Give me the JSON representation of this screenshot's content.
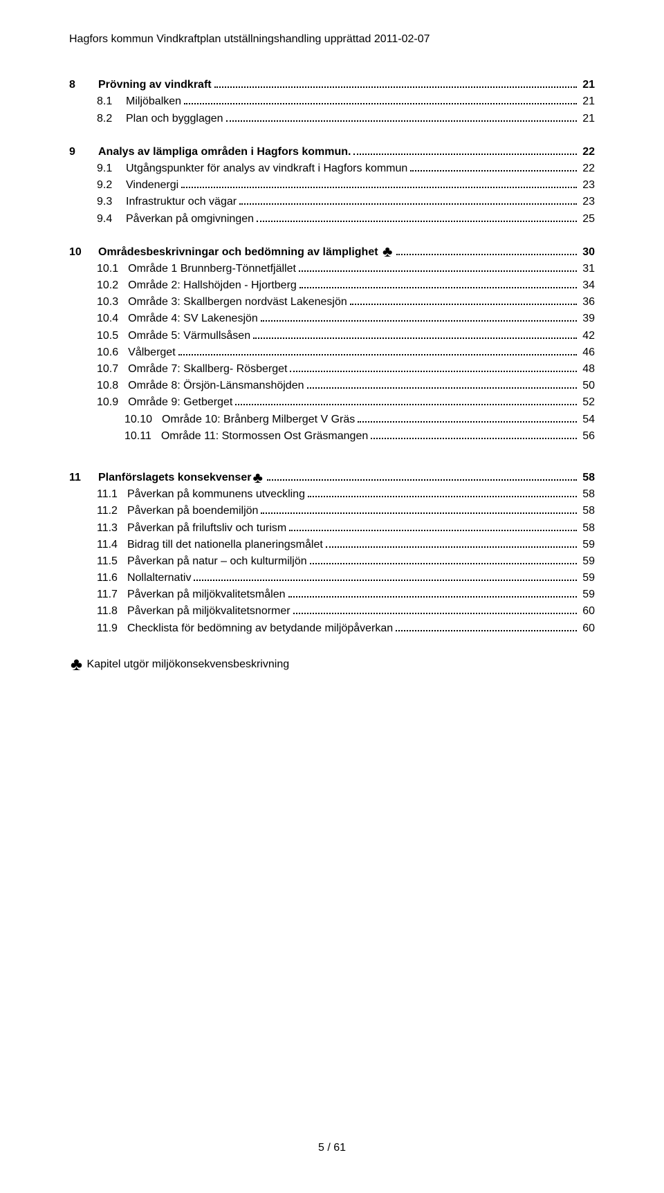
{
  "header": "Hagfors kommun Vindkraftplan utställningshandling upprättad 2011-02-07",
  "club_glyph": "♣",
  "afternote": "Kapitel utgör miljökonsekvensbeskrivning",
  "footer": "5 / 61",
  "toc": [
    {
      "num": "8",
      "label": "Prövning av vindkraft",
      "page": "21",
      "bold": true,
      "indent": 0,
      "club": false
    },
    {
      "num": "8.1",
      "label": "Miljöbalken",
      "page": "21",
      "bold": false,
      "indent": 1,
      "club": false
    },
    {
      "num": "8.2",
      "label": "Plan och bygglagen",
      "page": "21",
      "bold": false,
      "indent": 1,
      "club": false
    },
    {
      "gap": true
    },
    {
      "num": "9",
      "label": "Analys av lämpliga områden i Hagfors kommun.",
      "page": "22",
      "bold": true,
      "indent": 0,
      "club": false
    },
    {
      "num": "9.1",
      "label": "Utgångspunkter för analys av vindkraft i Hagfors kommun",
      "page": "22",
      "bold": false,
      "indent": 1,
      "club": false
    },
    {
      "num": "9.2",
      "label": "Vindenergi",
      "page": "23",
      "bold": false,
      "indent": 1,
      "club": false
    },
    {
      "num": "9.3",
      "label": "Infrastruktur och vägar",
      "page": "23",
      "bold": false,
      "indent": 1,
      "club": false
    },
    {
      "num": "9.4",
      "label": "Påverkan på omgivningen",
      "page": "25",
      "bold": false,
      "indent": 1,
      "club": false
    },
    {
      "gap": true
    },
    {
      "num": "10",
      "label": "Områdesbeskrivningar och bedömning av lämplighet ",
      "page": "30",
      "bold": true,
      "indent": 0,
      "club": true
    },
    {
      "num": "10.1",
      "label": "Område 1 Brunnberg-Tönnetfjället",
      "page": "31",
      "bold": false,
      "indent": 1,
      "club": false
    },
    {
      "num": "10.2",
      "label": "Område 2: Hallshöjden - Hjortberg",
      "page": "34",
      "bold": false,
      "indent": 1,
      "club": false
    },
    {
      "num": "10.3",
      "label": "Område 3: Skallbergen nordväst Lakenesjön",
      "page": "36",
      "bold": false,
      "indent": 1,
      "club": false
    },
    {
      "num": "10.4",
      "label": "Område 4: SV Lakenesjön",
      "page": "39",
      "bold": false,
      "indent": 1,
      "club": false
    },
    {
      "num": "10.5",
      "label": "Område 5: Värmullsåsen",
      "page": "42",
      "bold": false,
      "indent": 1,
      "club": false
    },
    {
      "num": "10.6",
      "label": "Vålberget",
      "page": "46",
      "bold": false,
      "indent": 1,
      "club": false
    },
    {
      "num": "10.7",
      "label": "Område 7: Skallberg- Rösberget",
      "page": "48",
      "bold": false,
      "indent": 1,
      "club": false
    },
    {
      "num": "10.8",
      "label": "Område 8: Örsjön-Länsmanshöjden",
      "page": "50",
      "bold": false,
      "indent": 1,
      "club": false
    },
    {
      "num": "10.9",
      "label": "Område 9: Getberget",
      "page": "52",
      "bold": false,
      "indent": 1,
      "club": false
    },
    {
      "num": "10.10",
      "label": "Område 10: Brånberg Milberget V Gräs",
      "page": "54",
      "bold": false,
      "indent": 2,
      "club": false
    },
    {
      "num": "10.11",
      "label": "Område 11: Stormossen Ost Gräsmangen",
      "page": "56",
      "bold": false,
      "indent": 2,
      "club": false
    },
    {
      "biggap": true
    },
    {
      "num": "11",
      "label": "Planförslagets konsekvenser",
      "page": "58",
      "bold": true,
      "indent": 0,
      "club": true
    },
    {
      "num": "11.1",
      "label": "Påverkan på kommunens utveckling",
      "page": "58",
      "bold": false,
      "indent": 1,
      "club": false
    },
    {
      "num": "11.2",
      "label": "Påverkan på boendemiljön",
      "page": "58",
      "bold": false,
      "indent": 1,
      "club": false
    },
    {
      "num": "11.3",
      "label": "Påverkan på friluftsliv och turism",
      "page": "58",
      "bold": false,
      "indent": 1,
      "club": false
    },
    {
      "num": "11.4",
      "label": "Bidrag till det nationella planeringsmålet",
      "page": "59",
      "bold": false,
      "indent": 1,
      "club": false
    },
    {
      "num": "11.5",
      "label": "Påverkan på natur – och kulturmiljön",
      "page": "59",
      "bold": false,
      "indent": 1,
      "club": false
    },
    {
      "num": "11.6",
      "label": "Nollalternativ",
      "page": "59",
      "bold": false,
      "indent": 1,
      "club": false
    },
    {
      "num": "11.7",
      "label": "Påverkan på miljökvalitetsmålen",
      "page": "59",
      "bold": false,
      "indent": 1,
      "club": false
    },
    {
      "num": "11.8",
      "label": "Påverkan på miljökvalitetsnormer",
      "page": "60",
      "bold": false,
      "indent": 1,
      "club": false
    },
    {
      "num": "11.9",
      "label": "Checklista för bedömning av betydande miljöpåverkan",
      "page": "60",
      "bold": false,
      "indent": 1,
      "club": false
    }
  ]
}
